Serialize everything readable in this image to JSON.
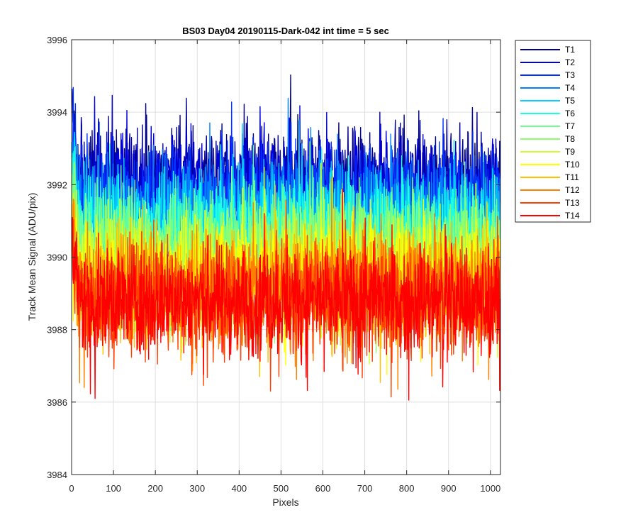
{
  "chart_data": {
    "type": "line",
    "title": "BS03 Day04 20190115-Dark-042 int time = 5 sec",
    "xlabel": "Pixels",
    "ylabel": "Track Mean Signal (ADU/pix)",
    "xlim": [
      0,
      1024
    ],
    "ylim": [
      3984,
      3996
    ],
    "xticks": [
      0,
      100,
      200,
      300,
      400,
      500,
      600,
      700,
      800,
      900,
      1000
    ],
    "yticks": [
      3984,
      3986,
      3988,
      3990,
      3992,
      3994,
      3996
    ],
    "grid": true,
    "legend_position": "outside-right",
    "x_count": 1024,
    "series": [
      {
        "name": "T1",
        "color": "#00008F",
        "mean": 3992.1,
        "amplitude": 0.75
      },
      {
        "name": "T2",
        "color": "#0000D9",
        "mean": 3991.9,
        "amplitude": 0.75
      },
      {
        "name": "T3",
        "color": "#0032FF",
        "mean": 3991.6,
        "amplitude": 0.75
      },
      {
        "name": "T4",
        "color": "#0080FF",
        "mean": 3991.3,
        "amplitude": 0.75
      },
      {
        "name": "T5",
        "color": "#00CFFF",
        "mean": 3991.0,
        "amplitude": 0.75
      },
      {
        "name": "T6",
        "color": "#1FFFE0",
        "mean": 3990.7,
        "amplitude": 0.75
      },
      {
        "name": "T7",
        "color": "#6FFF8F",
        "mean": 3990.4,
        "amplitude": 0.75
      },
      {
        "name": "T8",
        "color": "#8FFF6F",
        "mean": 3990.1,
        "amplitude": 0.75
      },
      {
        "name": "T9",
        "color": "#CFFF30",
        "mean": 3989.8,
        "amplitude": 0.75
      },
      {
        "name": "T10",
        "color": "#FFFF00",
        "mean": 3989.5,
        "amplitude": 0.75
      },
      {
        "name": "T11",
        "color": "#FFC000",
        "mean": 3989.3,
        "amplitude": 0.75
      },
      {
        "name": "T12",
        "color": "#FF8000",
        "mean": 3989.1,
        "amplitude": 0.75
      },
      {
        "name": "T13",
        "color": "#FF4000",
        "mean": 3988.9,
        "amplitude": 0.75
      },
      {
        "name": "T14",
        "color": "#FF0000",
        "mean": 3988.8,
        "amplitude": 0.75
      }
    ]
  }
}
